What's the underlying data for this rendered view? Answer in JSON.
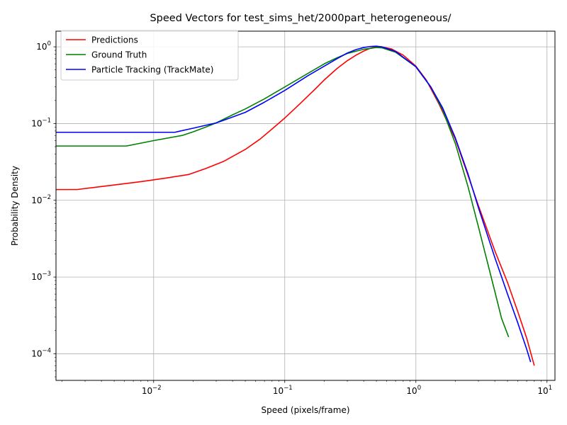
{
  "chart_data": {
    "type": "line",
    "title": "Speed Vectors for test_sims_het/2000part_heterogeneous/",
    "xlabel": "Speed (pixels/frame)",
    "ylabel": "Probability Density",
    "xscale": "log",
    "yscale": "log",
    "xlim": [
      0.0018,
      11.5
    ],
    "ylim": [
      4.5e-05,
      1.6
    ],
    "grid": true,
    "legend_position": "upper-left",
    "x_ticks": [
      {
        "value": 0.01,
        "base": "10",
        "exp": "−2"
      },
      {
        "value": 0.1,
        "base": "10",
        "exp": "−1"
      },
      {
        "value": 1,
        "base": "10",
        "exp": "0"
      },
      {
        "value": 10,
        "base": "10",
        "exp": "1"
      }
    ],
    "y_ticks": [
      {
        "value": 0.0001,
        "base": "10",
        "exp": "−4"
      },
      {
        "value": 0.001,
        "base": "10",
        "exp": "−3"
      },
      {
        "value": 0.01,
        "base": "10",
        "exp": "−2"
      },
      {
        "value": 0.1,
        "base": "10",
        "exp": "−1"
      },
      {
        "value": 1,
        "base": "10",
        "exp": "0"
      }
    ],
    "series": [
      {
        "name": "Predictions",
        "color": "#ff0000",
        "points": [
          [
            0.0018,
            0.0138
          ],
          [
            0.0026,
            0.0138
          ],
          [
            0.0045,
            0.0155
          ],
          [
            0.008,
            0.0175
          ],
          [
            0.0125,
            0.0195
          ],
          [
            0.0185,
            0.0217
          ],
          [
            0.025,
            0.026
          ],
          [
            0.034,
            0.032
          ],
          [
            0.05,
            0.046
          ],
          [
            0.065,
            0.063
          ],
          [
            0.08,
            0.085
          ],
          [
            0.1,
            0.118
          ],
          [
            0.13,
            0.18
          ],
          [
            0.17,
            0.28
          ],
          [
            0.2,
            0.37
          ],
          [
            0.25,
            0.52
          ],
          [
            0.3,
            0.66
          ],
          [
            0.35,
            0.78
          ],
          [
            0.4,
            0.88
          ],
          [
            0.45,
            0.96
          ],
          [
            0.5,
            1.0
          ],
          [
            0.55,
            1.0
          ],
          [
            0.65,
            0.94
          ],
          [
            0.8,
            0.78
          ],
          [
            1.0,
            0.56
          ],
          [
            1.2,
            0.37
          ],
          [
            1.5,
            0.18
          ],
          [
            2.0,
            0.063
          ],
          [
            2.5,
            0.021
          ],
          [
            3.0,
            0.0085
          ],
          [
            4.0,
            0.0022
          ],
          [
            5.0,
            0.00085
          ],
          [
            6.0,
            0.00035
          ],
          [
            7.0,
            0.00016
          ],
          [
            8.0,
            7e-05
          ]
        ]
      },
      {
        "name": "Ground Truth",
        "color": "#008000",
        "points": [
          [
            0.0018,
            0.051
          ],
          [
            0.003,
            0.051
          ],
          [
            0.0062,
            0.051
          ],
          [
            0.01,
            0.06
          ],
          [
            0.0165,
            0.07
          ],
          [
            0.02,
            0.078
          ],
          [
            0.025,
            0.09
          ],
          [
            0.03,
            0.102
          ],
          [
            0.04,
            0.13
          ],
          [
            0.05,
            0.155
          ],
          [
            0.07,
            0.21
          ],
          [
            0.1,
            0.3
          ],
          [
            0.15,
            0.45
          ],
          [
            0.2,
            0.6
          ],
          [
            0.25,
            0.72
          ],
          [
            0.3,
            0.82
          ],
          [
            0.4,
            0.93
          ],
          [
            0.5,
            0.98
          ],
          [
            0.55,
            0.97
          ],
          [
            0.7,
            0.85
          ],
          [
            1.0,
            0.55
          ],
          [
            1.3,
            0.3
          ],
          [
            1.6,
            0.15
          ],
          [
            2.0,
            0.055
          ],
          [
            2.5,
            0.015
          ],
          [
            3.0,
            0.0045
          ],
          [
            3.5,
            0.0016
          ],
          [
            4.0,
            0.00065
          ],
          [
            4.5,
            0.00029
          ],
          [
            5.1,
            0.000165
          ]
        ]
      },
      {
        "name": "Particle Tracking (TrackMate)",
        "color": "#0000ff",
        "points": [
          [
            0.0018,
            0.077
          ],
          [
            0.005,
            0.077
          ],
          [
            0.0145,
            0.077
          ],
          [
            0.02,
            0.087
          ],
          [
            0.025,
            0.095
          ],
          [
            0.03,
            0.102
          ],
          [
            0.035,
            0.112
          ],
          [
            0.05,
            0.14
          ],
          [
            0.07,
            0.19
          ],
          [
            0.1,
            0.27
          ],
          [
            0.15,
            0.42
          ],
          [
            0.2,
            0.56
          ],
          [
            0.25,
            0.7
          ],
          [
            0.3,
            0.83
          ],
          [
            0.35,
            0.92
          ],
          [
            0.4,
            0.98
          ],
          [
            0.45,
            1.01
          ],
          [
            0.5,
            1.02
          ],
          [
            0.55,
            1.0
          ],
          [
            0.7,
            0.87
          ],
          [
            1.0,
            0.55
          ],
          [
            1.3,
            0.3
          ],
          [
            1.6,
            0.16
          ],
          [
            2.0,
            0.065
          ],
          [
            2.5,
            0.022
          ],
          [
            3.0,
            0.008
          ],
          [
            4.0,
            0.0018
          ],
          [
            5.0,
            0.0006
          ],
          [
            6.0,
            0.00025
          ],
          [
            7.0,
            0.000115
          ],
          [
            7.5,
            7.8e-05
          ]
        ]
      }
    ]
  }
}
